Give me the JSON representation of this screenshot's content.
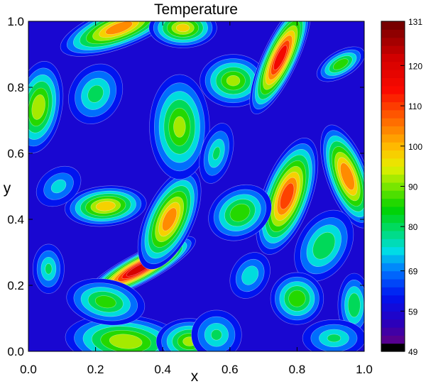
{
  "chart_data": {
    "type": "heatmap",
    "title": "Temperature",
    "xlabel": "x",
    "ylabel": "y",
    "xlim": [
      0.0,
      1.0
    ],
    "ylim": [
      0.0,
      1.0
    ],
    "x_ticks": [
      "0.0",
      "0.2",
      "0.4",
      "0.6",
      "0.8",
      "1.0"
    ],
    "y_ticks": [
      "0.0",
      "0.2",
      "0.4",
      "0.6",
      "0.8",
      "1.0"
    ],
    "colorbar": {
      "range": [
        49,
        131
      ],
      "ticks": [
        "49",
        "59",
        "69",
        "80",
        "90",
        "100",
        "110",
        "120",
        "131"
      ],
      "colormap": "rainbow"
    },
    "contours": "white",
    "hot_spots": [
      {
        "x": 0.33,
        "y": 0.25,
        "value": 125,
        "sx": 0.09,
        "sy": 0.022,
        "angle": -28
      },
      {
        "x": 0.29,
        "y": 0.03,
        "value": 95,
        "sx": 0.09,
        "sy": 0.04,
        "angle": 5
      },
      {
        "x": 0.48,
        "y": 0.03,
        "value": 92,
        "sx": 0.05,
        "sy": 0.035,
        "angle": 0
      },
      {
        "x": 0.23,
        "y": 0.15,
        "value": 88,
        "sx": 0.06,
        "sy": 0.035,
        "angle": 10
      },
      {
        "x": 0.42,
        "y": 0.4,
        "value": 106,
        "sx": 0.035,
        "sy": 0.08,
        "angle": 25
      },
      {
        "x": 0.23,
        "y": 0.44,
        "value": 100,
        "sx": 0.06,
        "sy": 0.03,
        "angle": -5
      },
      {
        "x": 0.27,
        "y": 0.98,
        "value": 106,
        "sx": 0.09,
        "sy": 0.03,
        "angle": -20
      },
      {
        "x": 0.46,
        "y": 0.98,
        "value": 98,
        "sx": 0.05,
        "sy": 0.03,
        "angle": 0
      },
      {
        "x": 0.03,
        "y": 0.74,
        "value": 95,
        "sx": 0.035,
        "sy": 0.07,
        "angle": 10
      },
      {
        "x": 0.2,
        "y": 0.78,
        "value": 82,
        "sx": 0.04,
        "sy": 0.05,
        "angle": 30
      },
      {
        "x": 0.45,
        "y": 0.68,
        "value": 92,
        "sx": 0.045,
        "sy": 0.08,
        "angle": 0
      },
      {
        "x": 0.61,
        "y": 0.82,
        "value": 92,
        "sx": 0.05,
        "sy": 0.04,
        "angle": 0
      },
      {
        "x": 0.75,
        "y": 0.89,
        "value": 118,
        "sx": 0.025,
        "sy": 0.09,
        "angle": 25
      },
      {
        "x": 0.93,
        "y": 0.87,
        "value": 90,
        "sx": 0.04,
        "sy": 0.02,
        "angle": -30
      },
      {
        "x": 0.77,
        "y": 0.47,
        "value": 112,
        "sx": 0.035,
        "sy": 0.09,
        "angle": 20
      },
      {
        "x": 0.95,
        "y": 0.53,
        "value": 108,
        "sx": 0.03,
        "sy": 0.08,
        "angle": -20
      },
      {
        "x": 0.63,
        "y": 0.42,
        "value": 90,
        "sx": 0.05,
        "sy": 0.04,
        "angle": -30
      },
      {
        "x": 0.88,
        "y": 0.32,
        "value": 85,
        "sx": 0.04,
        "sy": 0.06,
        "angle": 30
      },
      {
        "x": 0.8,
        "y": 0.16,
        "value": 90,
        "sx": 0.04,
        "sy": 0.04,
        "angle": 0
      },
      {
        "x": 0.56,
        "y": 0.05,
        "value": 80,
        "sx": 0.04,
        "sy": 0.04,
        "angle": 0
      },
      {
        "x": 0.97,
        "y": 0.14,
        "value": 85,
        "sx": 0.025,
        "sy": 0.05,
        "angle": 0
      },
      {
        "x": 0.06,
        "y": 0.25,
        "value": 80,
        "sx": 0.025,
        "sy": 0.04,
        "angle": 0
      },
      {
        "x": 0.56,
        "y": 0.6,
        "value": 80,
        "sx": 0.025,
        "sy": 0.05,
        "angle": 15
      },
      {
        "x": 0.91,
        "y": 0.04,
        "value": 80,
        "sx": 0.05,
        "sy": 0.03,
        "angle": 0
      },
      {
        "x": 0.09,
        "y": 0.5,
        "value": 76,
        "sx": 0.04,
        "sy": 0.03,
        "angle": -35
      },
      {
        "x": 0.66,
        "y": 0.23,
        "value": 78,
        "sx": 0.03,
        "sy": 0.04,
        "angle": 30
      }
    ]
  }
}
